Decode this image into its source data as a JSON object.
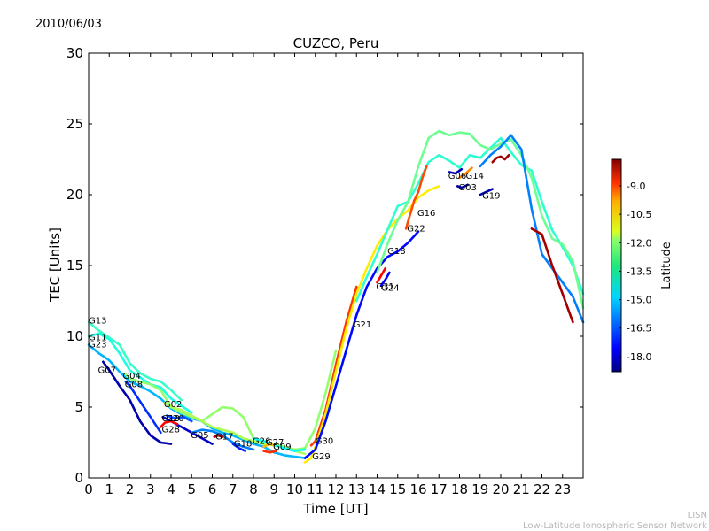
{
  "header": {
    "date": "2010/06/03"
  },
  "credits": {
    "line1": "LISN",
    "line2": "Low-Latitude Ionospheric Sensor Network"
  },
  "chart_data": {
    "type": "scatter",
    "title": "CUZCO, Peru",
    "xlabel": "Time [UT]",
    "ylabel": "TEC [Units]",
    "xlim": [
      0,
      24
    ],
    "ylim": [
      0,
      30
    ],
    "xticks": [
      "0",
      "1",
      "2",
      "3",
      "4",
      "5",
      "6",
      "7",
      "8",
      "9",
      "10",
      "11",
      "12",
      "13",
      "14",
      "15",
      "16",
      "17",
      "18",
      "19",
      "20",
      "21",
      "22",
      "23"
    ],
    "yticks": [
      "0",
      "5",
      "10",
      "15",
      "20",
      "25",
      "30"
    ],
    "grid": false,
    "colorbar": {
      "label": "Latitude",
      "range": [
        -18.8,
        -7.6
      ],
      "ticks": [
        "-9.0",
        "-10.5",
        "-12.0",
        "-13.5",
        "-15.0",
        "-16.5",
        "-18.0"
      ],
      "tick_values": [
        -9.0,
        -10.5,
        -12.0,
        -13.5,
        -15.0,
        -16.5,
        -18.0
      ],
      "colormap": "jet"
    },
    "series": [
      {
        "name": "G13",
        "label_at": [
          0.0,
          11.1
        ],
        "color_lat": -14.0,
        "x": [
          0.0,
          0.5,
          1.0,
          1.5,
          2.0,
          2.5,
          3.0,
          3.5,
          4.0,
          4.5
        ],
        "y": [
          11.0,
          10.4,
          9.9,
          9.4,
          8.1,
          7.4,
          7.0,
          6.8,
          6.2,
          5.5
        ]
      },
      {
        "name": "G11",
        "label_at": [
          0.0,
          9.9
        ],
        "color_lat": -14.3,
        "x": [
          0.0,
          0.5,
          1.0,
          1.5,
          2.0,
          2.5,
          3.0,
          3.5,
          4.0,
          4.5,
          5.0
        ],
        "y": [
          10.0,
          10.2,
          9.8,
          8.8,
          7.6,
          7.1,
          6.6,
          6.4,
          5.6,
          5.1,
          4.6
        ]
      },
      {
        "name": "G23",
        "label_at": [
          0.0,
          9.4
        ],
        "color_lat": -15.4,
        "x": [
          0.0,
          0.5,
          1.0,
          1.5,
          2.0,
          2.5,
          3.0,
          3.5,
          4.0,
          4.5,
          5.0,
          5.5,
          6.0,
          6.5,
          7.0,
          7.5,
          8.0,
          8.5,
          9.0,
          9.5,
          10.0,
          10.5
        ],
        "y": [
          9.4,
          8.8,
          8.3,
          7.5,
          6.8,
          6.5,
          6.1,
          5.6,
          4.9,
          4.5,
          4.2,
          4.0,
          3.5,
          3.2,
          3.0,
          2.7,
          2.4,
          2.2,
          1.8,
          1.6,
          1.5,
          1.4
        ]
      },
      {
        "name": "G07",
        "label_at": [
          0.45,
          7.6
        ],
        "color_lat": -18.3,
        "x": [
          0.7,
          1.0,
          1.5,
          2.0,
          2.5,
          3.0,
          3.5,
          4.0
        ],
        "y": [
          8.2,
          7.6,
          6.5,
          5.5,
          4.0,
          3.0,
          2.5,
          2.4
        ]
      },
      {
        "name": "G04",
        "label_at": [
          1.65,
          7.2
        ],
        "color_lat": -13.0,
        "x": [
          1.8,
          2.0,
          2.5,
          3.0,
          3.5,
          4.0,
          4.5,
          5.0,
          5.5,
          6.0,
          6.5,
          7.0,
          7.5,
          8.0,
          8.5,
          9.0,
          9.5,
          10.0,
          10.5,
          11.0,
          11.5,
          12.0
        ],
        "y": [
          7.3,
          7.0,
          6.8,
          6.6,
          6.2,
          5.0,
          4.6,
          4.3,
          4.0,
          4.5,
          5.0,
          4.9,
          4.3,
          2.8,
          2.5,
          2.4,
          2.2,
          2.0,
          2.1,
          3.5,
          6.0,
          9.0
        ]
      },
      {
        "name": "G08",
        "label_at": [
          1.75,
          6.6
        ],
        "color_lat": -16.9,
        "x": [
          1.8,
          2.0,
          2.5,
          3.0,
          3.5
        ],
        "y": [
          6.8,
          6.5,
          5.4,
          4.3,
          3.2
        ]
      },
      {
        "name": "G02",
        "label_at": [
          3.65,
          5.2
        ],
        "color_lat": -12.7,
        "x": [
          3.7,
          4.0,
          4.5,
          5.0,
          5.5,
          6.0,
          6.5,
          7.0,
          7.5,
          8.0,
          8.5,
          9.0,
          9.5,
          10.0,
          10.5
        ],
        "y": [
          5.3,
          5.0,
          4.8,
          4.4,
          4.0,
          3.6,
          3.4,
          3.2,
          2.8,
          2.6,
          2.4,
          2.3,
          2.1,
          1.9,
          1.7
        ]
      },
      {
        "name": "G10",
        "label_at": [
          3.55,
          4.2
        ],
        "color_lat": -18.0,
        "x": [
          3.6,
          4.0,
          4.5,
          5.0,
          5.5,
          6.0
        ],
        "y": [
          4.3,
          4.0,
          3.6,
          3.2,
          2.8,
          2.4
        ]
      },
      {
        "name": "G20",
        "label_at": [
          3.75,
          4.2
        ],
        "color_lat": -16.5,
        "x": [
          3.8,
          4.2,
          4.6,
          5.0
        ],
        "y": [
          4.4,
          4.2,
          4.3,
          4.0
        ]
      },
      {
        "name": "G28",
        "label_at": [
          3.55,
          3.4
        ],
        "color_lat": -9.0,
        "x": [
          3.5,
          3.7,
          4.0,
          4.3
        ],
        "y": [
          3.6,
          3.9,
          4.0,
          3.8
        ]
      },
      {
        "name": "G05",
        "label_at": [
          4.95,
          3.0
        ],
        "color_lat": -16.0,
        "x": [
          5.0,
          5.5,
          6.0,
          6.5,
          7.0,
          7.5,
          8.0
        ],
        "y": [
          3.2,
          3.4,
          3.3,
          3.0,
          2.5,
          2.2,
          2.0
        ]
      },
      {
        "name": "G17",
        "label_at": [
          6.15,
          2.9
        ],
        "color_lat": -8.2,
        "x": [
          6.1,
          6.3,
          6.5
        ],
        "y": [
          2.9,
          3.0,
          2.9
        ]
      },
      {
        "name": "G18",
        "label_at": [
          7.05,
          2.4
        ],
        "color_lat": -17.0,
        "x": [
          7.0,
          7.3,
          7.6
        ],
        "y": [
          2.4,
          2.1,
          1.9
        ]
      },
      {
        "name": "G26",
        "label_at": [
          7.95,
          2.6
        ],
        "color_lat": -14.6,
        "x": [
          8.0,
          8.5,
          9.0,
          9.5,
          10.0,
          10.5
        ],
        "y": [
          2.8,
          2.6,
          2.3,
          2.1,
          1.9,
          2.0
        ]
      },
      {
        "name": "G27",
        "label_at": [
          8.6,
          2.5
        ],
        "color_lat": -11.0,
        "x": [
          8.5,
          8.8,
          9.0
        ],
        "y": [
          2.2,
          2.4,
          2.3
        ]
      },
      {
        "name": "G09",
        "label_at": [
          8.95,
          2.2
        ],
        "color_lat": -9.5,
        "x": [
          8.5,
          8.8,
          9.1
        ],
        "y": [
          1.9,
          1.8,
          1.9
        ]
      },
      {
        "name": "G30",
        "label_at": [
          11.0,
          2.6
        ],
        "color_lat": -9.6,
        "x": [
          10.8,
          11.0,
          11.5,
          12.0,
          12.5,
          13.0
        ],
        "y": [
          2.3,
          2.6,
          4.8,
          8.0,
          11.0,
          13.5
        ]
      },
      {
        "name": "G29",
        "label_at": [
          10.85,
          1.5
        ],
        "color_lat": -11.6,
        "x": [
          10.5,
          10.8,
          11.0,
          11.5,
          12.0,
          12.5,
          13.0,
          13.5,
          14.0,
          14.5,
          15.0,
          15.5,
          16.0,
          16.5,
          17.0
        ],
        "y": [
          1.1,
          1.4,
          2.2,
          4.5,
          7.5,
          10.5,
          13.0,
          14.8,
          16.4,
          17.5,
          18.3,
          18.9,
          19.8,
          20.3,
          20.6
        ]
      },
      {
        "name": "G21",
        "label_at": [
          12.85,
          10.8
        ],
        "color_lat": -17.3,
        "x": [
          10.5,
          11.0,
          11.5,
          12.0,
          12.5,
          13.0,
          13.5,
          14.0,
          14.5,
          15.0,
          15.5,
          16.0
        ],
        "y": [
          1.4,
          2.0,
          4.0,
          6.5,
          9.0,
          11.5,
          13.5,
          14.8,
          15.6,
          16.0,
          16.6,
          17.4
        ]
      },
      {
        "name": "G31",
        "label_at": [
          13.95,
          13.5
        ],
        "color_lat": -9.0,
        "x": [
          14.0,
          14.2,
          14.4
        ],
        "y": [
          13.8,
          14.3,
          14.8
        ]
      },
      {
        "name": "G24",
        "label_at": [
          14.2,
          13.4
        ],
        "color_lat": -17.5,
        "x": [
          14.2,
          14.4,
          14.6
        ],
        "y": [
          13.6,
          14.0,
          14.5
        ]
      },
      {
        "name": "G18",
        "label_at": [
          14.5,
          16.0
        ],
        "color_lat": -14.1,
        "x": [
          13.0,
          13.5,
          14.0,
          14.5,
          15.0,
          15.5,
          16.0,
          16.5,
          17.0,
          17.5,
          18.0,
          18.5,
          19.0,
          19.5,
          20.0,
          20.5,
          21.0,
          21.5,
          22.0,
          22.5,
          23.0,
          23.5,
          24.0
        ],
        "y": [
          12.5,
          14.2,
          15.8,
          17.5,
          19.2,
          19.5,
          20.8,
          22.3,
          22.8,
          22.4,
          21.9,
          22.8,
          22.6,
          23.3,
          24.0,
          23.0,
          22.1,
          21.7,
          19.5,
          17.5,
          16.3,
          15.0,
          13.0
        ]
      },
      {
        "name": "G22",
        "label_at": [
          15.45,
          17.6
        ],
        "color_lat": -9.8,
        "x": [
          15.4,
          15.6,
          15.8,
          16.0,
          16.2,
          16.4
        ],
        "y": [
          17.6,
          18.6,
          19.6,
          20.2,
          21.2,
          22.0
        ]
      },
      {
        "name": "G16",
        "label_at": [
          15.95,
          18.7
        ],
        "color_lat": -13.4,
        "x": [
          14.0,
          14.5,
          15.0,
          15.5,
          16.0,
          16.5,
          17.0,
          17.5,
          18.0,
          18.5,
          19.0,
          19.5,
          20.0,
          20.5,
          21.0,
          21.5,
          22.0,
          22.5,
          23.0,
          23.5,
          24.0
        ],
        "y": [
          14.5,
          16.5,
          18.2,
          19.5,
          22.0,
          24.0,
          24.5,
          24.2,
          24.4,
          24.3,
          23.5,
          23.2,
          23.6,
          23.9,
          22.8,
          21.2,
          18.5,
          16.9,
          16.5,
          15.3,
          12.0
        ]
      },
      {
        "name": "G06",
        "label_at": [
          17.45,
          21.3
        ],
        "color_lat": -18.2,
        "x": [
          17.5,
          17.8,
          18.1
        ],
        "y": [
          21.6,
          21.5,
          21.8
        ]
      },
      {
        "name": "G14",
        "label_at": [
          18.3,
          21.3
        ],
        "color_lat": -10.5,
        "x": [
          18.0,
          18.3,
          18.6
        ],
        "y": [
          21.2,
          21.5,
          21.9
        ]
      },
      {
        "name": "G03",
        "label_at": [
          17.95,
          20.5
        ],
        "color_lat": -18.4,
        "x": [
          17.9,
          18.1,
          18.4
        ],
        "y": [
          20.6,
          20.5,
          20.7
        ]
      },
      {
        "name": "G19",
        "label_at": [
          19.1,
          19.9
        ],
        "color_lat": -18.2,
        "x": [
          19.0,
          19.3,
          19.6
        ],
        "y": [
          20.0,
          20.2,
          20.4
        ]
      },
      {
        "name": "",
        "color_lat": -8.0,
        "x": [
          19.6,
          19.8,
          20.0,
          20.2,
          20.4
        ],
        "y": [
          22.3,
          22.6,
          22.7,
          22.5,
          22.8
        ]
      },
      {
        "name": "",
        "color_lat": -16.0,
        "x": [
          19.0,
          19.5,
          20.0,
          20.5,
          21.0,
          21.5,
          22.0,
          22.5,
          23.0,
          23.5,
          24.0
        ],
        "y": [
          22.0,
          22.8,
          23.4,
          24.2,
          23.2,
          19.0,
          15.8,
          14.8,
          13.8,
          12.8,
          11.0
        ]
      },
      {
        "name": "",
        "color_lat": -8.0,
        "x": [
          21.5,
          22.0,
          22.5,
          23.0,
          23.5
        ],
        "y": [
          17.6,
          17.2,
          15.0,
          13.0,
          11.0
        ]
      }
    ]
  }
}
